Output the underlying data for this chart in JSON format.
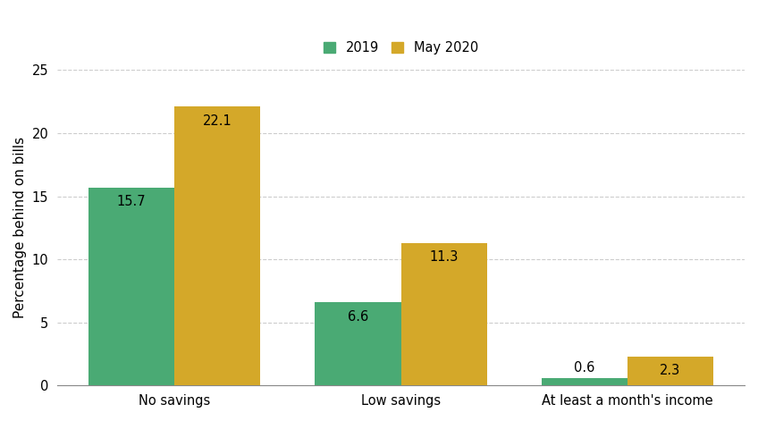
{
  "categories": [
    "No savings",
    "Low savings",
    "At least a month's income"
  ],
  "series": {
    "2019": [
      15.7,
      6.6,
      0.6
    ],
    "May 2020": [
      22.1,
      11.3,
      2.3
    ]
  },
  "colors": {
    "2019": "#4aaa74",
    "May 2020": "#d4a829"
  },
  "ylabel": "Percentage behind on bills",
  "ylim": [
    0,
    25
  ],
  "yticks": [
    0,
    5,
    10,
    15,
    20,
    25
  ],
  "bar_width": 0.38,
  "background_color": "#ffffff",
  "grid_color": "#aaaaaa",
  "label_fontsize": 10.5,
  "tick_fontsize": 10.5,
  "legend_fontsize": 10.5,
  "ylabel_fontsize": 11
}
